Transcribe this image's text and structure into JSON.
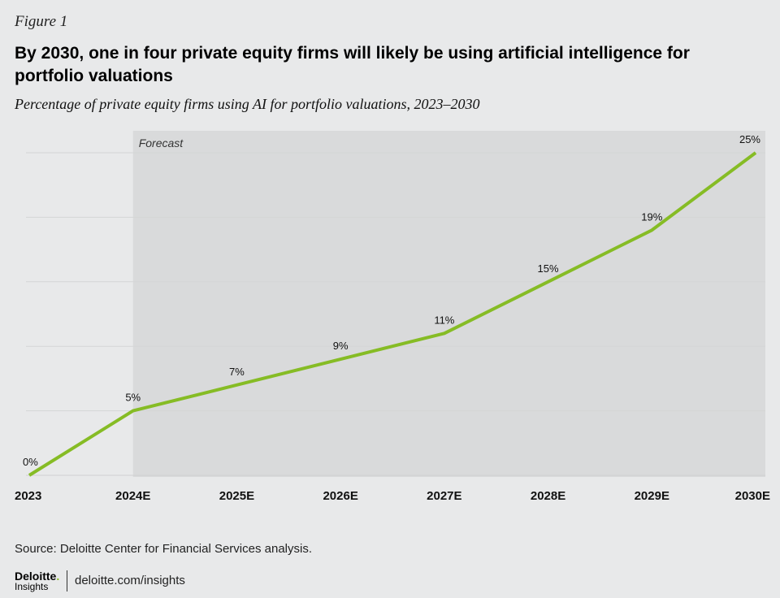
{
  "figure_label": "Figure 1",
  "title": "By 2030, one in four private equity firms will likely be using artificial intelligence for portfolio valuations",
  "subtitle": "Percentage of private equity firms using AI for portfolio valuations, 2023–2030",
  "source": "Source: Deloitte Center for Financial Services analysis.",
  "footer": {
    "brand": "Deloitte",
    "brand_dot": ".",
    "brand_sub": "Insights",
    "url": "deloitte.com/insights"
  },
  "colors": {
    "line": "#86bc25",
    "forecast_band": "#d9dadb",
    "background": "#e8e9ea"
  },
  "chart_data": {
    "type": "line",
    "categories": [
      "2023",
      "2024E",
      "2025E",
      "2026E",
      "2027E",
      "2028E",
      "2029E",
      "2030E"
    ],
    "values": [
      0,
      5,
      7,
      9,
      11,
      15,
      19,
      25
    ],
    "data_labels": [
      "0%",
      "5%",
      "7%",
      "9%",
      "11%",
      "15%",
      "19%",
      "25%"
    ],
    "ylim": [
      0,
      25
    ],
    "grid": true,
    "forecast_band": {
      "start": "2024E",
      "end": "2030E",
      "label": "Forecast"
    }
  }
}
